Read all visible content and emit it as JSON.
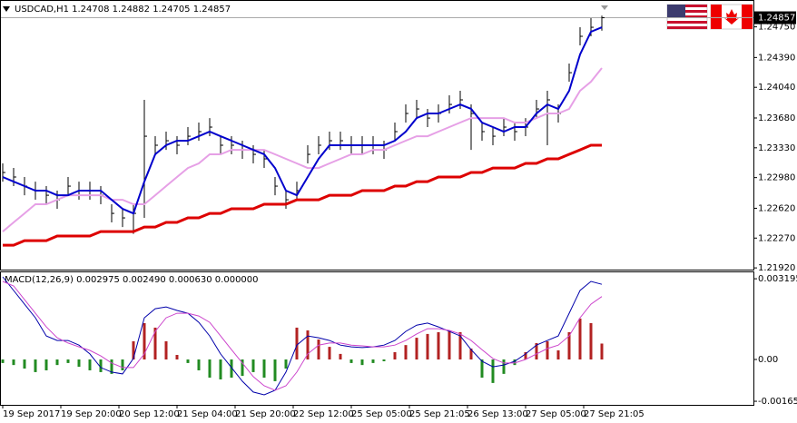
{
  "chart_data": [
    {
      "type": "hlc",
      "title": "USDCAD,H1  1.24708 1.24882 1.24705 1.24857",
      "last_price": 1.24857,
      "x": [
        0,
        3,
        6,
        9,
        12,
        15,
        18,
        21,
        24,
        27,
        30,
        33,
        36,
        39,
        42,
        45,
        48,
        51,
        54,
        57,
        60,
        63,
        66,
        69,
        72,
        75,
        78,
        81,
        84,
        87,
        90,
        93,
        96,
        99,
        102,
        105,
        108,
        111,
        114,
        117,
        120,
        123,
        126,
        129,
        132,
        135,
        138,
        141,
        144,
        147,
        150,
        153,
        156,
        159,
        162,
        165
      ],
      "high": [
        1.23147,
        1.23093,
        1.22987,
        1.22933,
        1.2288,
        1.22827,
        1.22987,
        1.22933,
        1.22933,
        1.2288,
        1.22667,
        1.22614,
        1.22667,
        1.23893,
        1.23466,
        1.2352,
        1.23466,
        1.23573,
        1.23626,
        1.23679,
        1.23466,
        1.23466,
        1.23413,
        1.2336,
        1.23306,
        1.22987,
        1.22827,
        1.22933,
        1.2336,
        1.23466,
        1.2352,
        1.2352,
        1.23466,
        1.23466,
        1.23466,
        1.23413,
        1.23626,
        1.23839,
        1.23893,
        1.23786,
        1.23839,
        1.23946,
        1.23999,
        1.23839,
        1.23626,
        1.23573,
        1.23679,
        1.23626,
        1.23679,
        1.23893,
        1.23999,
        1.23839,
        1.24319,
        1.24745,
        1.24852,
        1.24882
      ],
      "low": [
        1.22933,
        1.2288,
        1.22773,
        1.2272,
        1.22667,
        1.22614,
        1.22773,
        1.2272,
        1.2272,
        1.22667,
        1.22454,
        1.224,
        1.2232,
        1.22507,
        1.23253,
        1.23306,
        1.23253,
        1.2336,
        1.23413,
        1.23466,
        1.23253,
        1.23253,
        1.232,
        1.23147,
        1.23093,
        1.22773,
        1.22614,
        1.2272,
        1.23147,
        1.23253,
        1.23306,
        1.23306,
        1.23253,
        1.23253,
        1.23253,
        1.232,
        1.23413,
        1.23626,
        1.23679,
        1.23573,
        1.23626,
        1.23733,
        1.23786,
        1.23306,
        1.23413,
        1.2336,
        1.23466,
        1.23413,
        1.23466,
        1.23679,
        1.2336,
        1.23626,
        1.24106,
        1.24532,
        1.24639,
        1.24705
      ],
      "close": [
        1.2304,
        1.22987,
        1.2288,
        1.22827,
        1.22773,
        1.2272,
        1.2288,
        1.22827,
        1.22827,
        1.22773,
        1.2256,
        1.22507,
        1.2256,
        1.23466,
        1.2336,
        1.23413,
        1.2336,
        1.23466,
        1.2352,
        1.23573,
        1.2336,
        1.2336,
        1.23306,
        1.23253,
        1.232,
        1.2288,
        1.2272,
        1.22827,
        1.23253,
        1.2336,
        1.23413,
        1.23413,
        1.2336,
        1.2336,
        1.2336,
        1.23306,
        1.2352,
        1.23733,
        1.23786,
        1.23679,
        1.23733,
        1.23839,
        1.23893,
        1.23733,
        1.2352,
        1.23466,
        1.23573,
        1.2352,
        1.23573,
        1.23786,
        1.23893,
        1.23733,
        1.24212,
        1.24639,
        1.24745,
        1.24857
      ],
      "bar_color": "#000000",
      "series": [
        {
          "color": "#dd0000",
          "width": 3,
          "values": [
            1.22187,
            1.22187,
            1.2224,
            1.2224,
            1.2224,
            1.22294,
            1.22294,
            1.22294,
            1.22294,
            1.22347,
            1.22347,
            1.22347,
            1.22347,
            1.224,
            1.224,
            1.22454,
            1.22454,
            1.22507,
            1.22507,
            1.2256,
            1.2256,
            1.22614,
            1.22614,
            1.22614,
            1.22667,
            1.22667,
            1.22667,
            1.2272,
            1.2272,
            1.2272,
            1.22773,
            1.22773,
            1.22773,
            1.22827,
            1.22827,
            1.22827,
            1.2288,
            1.2288,
            1.22933,
            1.22933,
            1.22987,
            1.22987,
            1.22987,
            1.2304,
            1.2304,
            1.23093,
            1.23093,
            1.23093,
            1.23147,
            1.23147,
            1.232,
            1.232,
            1.23253,
            1.23306,
            1.2336,
            1.2336
          ]
        },
        {
          "color": "#e6a0e6",
          "width": 2,
          "values": [
            1.22347,
            1.22454,
            1.2256,
            1.22667,
            1.22667,
            1.2272,
            1.22773,
            1.22773,
            1.22773,
            1.22773,
            1.2272,
            1.2272,
            1.22667,
            1.22667,
            1.22773,
            1.2288,
            1.22987,
            1.23093,
            1.23147,
            1.23253,
            1.23253,
            1.23306,
            1.23306,
            1.23306,
            1.23306,
            1.23253,
            1.232,
            1.23147,
            1.23093,
            1.23093,
            1.23147,
            1.232,
            1.23253,
            1.23253,
            1.23306,
            1.23306,
            1.2336,
            1.23413,
            1.23466,
            1.23466,
            1.2352,
            1.23573,
            1.23626,
            1.23679,
            1.23679,
            1.23679,
            1.23679,
            1.23626,
            1.23626,
            1.23679,
            1.23733,
            1.23733,
            1.23786,
            1.23999,
            1.24106,
            1.24266
          ]
        },
        {
          "color": "#0000cc",
          "width": 2,
          "values": [
            1.22987,
            1.22933,
            1.2288,
            1.22827,
            1.22827,
            1.22773,
            1.22773,
            1.22827,
            1.22827,
            1.22827,
            1.2272,
            1.22614,
            1.2256,
            1.22933,
            1.23253,
            1.2336,
            1.23413,
            1.23413,
            1.23466,
            1.2352,
            1.23466,
            1.23413,
            1.2336,
            1.23306,
            1.23253,
            1.23093,
            1.22827,
            1.22773,
            1.22987,
            1.232,
            1.2336,
            1.2336,
            1.2336,
            1.2336,
            1.2336,
            1.2336,
            1.23413,
            1.2352,
            1.23679,
            1.23733,
            1.23733,
            1.23786,
            1.23839,
            1.23786,
            1.23626,
            1.23573,
            1.2352,
            1.23573,
            1.23573,
            1.23733,
            1.23839,
            1.23786,
            1.23999,
            1.24426,
            1.24692,
            1.24745
          ]
        }
      ],
      "xlim": [
        0,
        168
      ],
      "ylim": [
        1.219,
        1.2498
      ],
      "yticks": [
        {
          "value": 1.2475,
          "label": "1.24750"
        },
        {
          "value": 1.2439,
          "label": "1.24390"
        },
        {
          "value": 1.2404,
          "label": "1.24040"
        },
        {
          "value": 1.2368,
          "label": "1.23680"
        },
        {
          "value": 1.2333,
          "label": "1.23330"
        },
        {
          "value": 1.2298,
          "label": "1.22980"
        },
        {
          "value": 1.2262,
          "label": "1.22620"
        },
        {
          "value": 1.2227,
          "label": "1.22270"
        },
        {
          "value": 1.2192,
          "label": "1.21920"
        }
      ]
    },
    {
      "type": "macd",
      "title": "MACD(12,26,9) 0.002975 0.002490 0.000630 0.000000",
      "x": [
        0,
        3,
        6,
        9,
        12,
        15,
        18,
        21,
        24,
        27,
        30,
        33,
        36,
        39,
        42,
        45,
        48,
        51,
        54,
        57,
        60,
        63,
        66,
        69,
        72,
        75,
        78,
        81,
        84,
        87,
        90,
        93,
        96,
        99,
        102,
        105,
        108,
        111,
        114,
        117,
        120,
        123,
        126,
        129,
        132,
        135,
        138,
        141,
        144,
        147,
        150,
        153,
        156,
        159,
        162,
        165
      ],
      "histogram": {
        "color_positive": "#b22222",
        "color_negative": "#228b22",
        "values": [
          -0.00014,
          -0.00022,
          -0.00036,
          -0.0005,
          -0.00043,
          -0.00022,
          -0.00014,
          -0.00029,
          -0.00043,
          -0.0005,
          -0.00057,
          -0.00043,
          0.00072,
          0.00144,
          0.00126,
          0.00072,
          0.00018,
          -0.00014,
          -0.00043,
          -0.00072,
          -0.00079,
          -0.00072,
          -0.00065,
          -0.0005,
          -0.00072,
          -0.00086,
          -0.00036,
          0.00126,
          0.00115,
          0.00079,
          0.0005,
          0.00022,
          -0.00014,
          -0.00022,
          -0.00014,
          -7e-05,
          0.00029,
          0.00057,
          0.00086,
          0.00101,
          0.00108,
          0.00115,
          0.00108,
          0.00043,
          -0.00072,
          -0.00093,
          -0.00057,
          -0.00022,
          0.00029,
          0.00065,
          0.00072,
          0.00036,
          0.00108,
          0.00162,
          0.00144,
          0.00063
        ]
      },
      "series": [
        {
          "color": "#0000aa",
          "width": 1,
          "values": [
            0.00327,
            0.00273,
            0.00219,
            0.00165,
            0.00093,
            0.00075,
            0.00075,
            0.00057,
            0.00022,
            -0.00032,
            -0.0005,
            -0.00057,
            4e-05,
            0.00165,
            0.00201,
            0.00208,
            0.00194,
            0.00183,
            0.00147,
            0.00093,
            0.00022,
            -0.00032,
            -0.00086,
            -0.00129,
            -0.0014,
            -0.00122,
            -0.0005,
            0.00057,
            0.00093,
            0.00086,
            0.00075,
            0.00057,
            0.0005,
            0.00047,
            0.0005,
            0.00057,
            0.00075,
            0.00111,
            0.00136,
            0.00144,
            0.00129,
            0.00111,
            0.00093,
            0.00039,
            -7e-05,
            -0.00029,
            -0.00022,
            -7e-05,
            0.00022,
            0.00057,
            0.00075,
            0.00093,
            0.00183,
            0.00273,
            0.00309,
            0.002975
          ]
        },
        {
          "color": "#cc44cc",
          "width": 1,
          "values": [
            0.00309,
            0.00291,
            0.00237,
            0.00183,
            0.00129,
            0.00086,
            0.00065,
            0.0005,
            0.00036,
            0.00014,
            -0.00014,
            -0.00032,
            -0.00032,
            0.00022,
            0.00111,
            0.00165,
            0.00183,
            0.00183,
            0.00172,
            0.00147,
            0.00093,
            0.00039,
            -0.00014,
            -0.00068,
            -0.00104,
            -0.00122,
            -0.00104,
            -0.0005,
            0.00022,
            0.00057,
            0.00065,
            0.00065,
            0.00057,
            0.00054,
            0.0005,
            0.0005,
            0.00057,
            0.00075,
            0.00101,
            0.00122,
            0.00122,
            0.00115,
            0.00101,
            0.00075,
            0.00039,
            4e-05,
            -0.00014,
            -0.00014,
            0,
            0.00022,
            0.00043,
            0.00057,
            0.00093,
            0.00165,
            0.00219,
            0.00249
          ]
        }
      ],
      "xlim": [
        0,
        168
      ],
      "ylim": [
        -0.00176,
        0.00345
      ],
      "yticks": [
        0.003195,
        {
          "value": 0,
          "label": "0.00"
        },
        -0.001654
      ],
      "xticks": [
        {
          "value": 0,
          "label": "19 Sep 2017"
        },
        {
          "value": 16,
          "label": "19 Sep 20:00"
        },
        {
          "value": 32,
          "label": "20 Sep 12:00"
        },
        {
          "value": 48,
          "label": "21 Sep 04:00"
        },
        {
          "value": 64,
          "label": "21 Sep 20:00"
        },
        {
          "value": 80,
          "label": "22 Sep 12:00"
        },
        {
          "value": 96,
          "label": "25 Sep 05:00"
        },
        {
          "value": 112,
          "label": "25 Sep 21:05"
        },
        {
          "value": 128,
          "label": "26 Sep 13:00"
        },
        {
          "value": 144,
          "label": "27 Sep 05:00"
        },
        {
          "value": 160,
          "label": "27 Sep 21:05"
        }
      ]
    }
  ]
}
